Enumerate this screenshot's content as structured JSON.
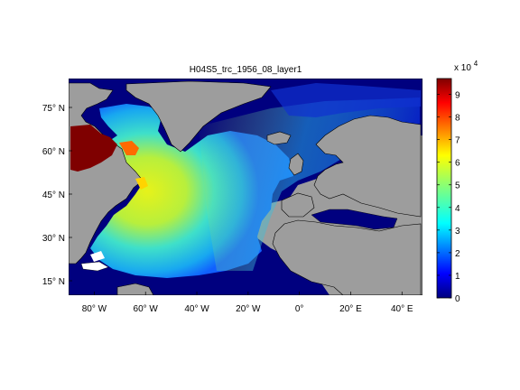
{
  "title": "H04S5_trc_1956_08_layer1",
  "map": {
    "lon_range": [
      -90,
      48
    ],
    "lat_range": [
      10,
      85
    ],
    "lat_ticks": [
      {
        "value": 75,
        "label": "75° N"
      },
      {
        "value": 60,
        "label": "60° N"
      },
      {
        "value": 45,
        "label": "45° N"
      },
      {
        "value": 30,
        "label": "30° N"
      },
      {
        "value": 15,
        "label": "15° N"
      }
    ],
    "lon_ticks": [
      {
        "value": -80,
        "label": "80° W"
      },
      {
        "value": -60,
        "label": "60° W"
      },
      {
        "value": -40,
        "label": "40° W"
      },
      {
        "value": -20,
        "label": "20° W"
      },
      {
        "value": 0,
        "label": "0°"
      },
      {
        "value": 20,
        "label": "20° E"
      },
      {
        "value": 40,
        "label": "40° E"
      }
    ],
    "colors": {
      "land": "#9d9d9d",
      "ocean_low": "#00007f",
      "coast": "#000000"
    }
  },
  "colorbar": {
    "min": 0,
    "max": 9.7,
    "ticks": [
      0,
      1,
      2,
      3,
      4,
      5,
      6,
      7,
      8,
      9
    ],
    "scale_label": "x 10",
    "scale_exponent": "4",
    "colormap": "jet"
  }
}
